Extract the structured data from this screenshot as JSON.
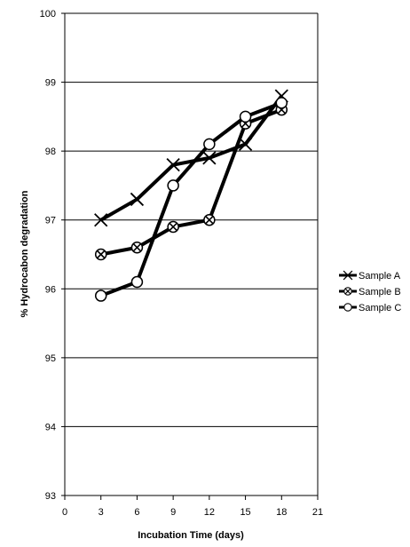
{
  "chart_data": {
    "type": "line",
    "xlabel": "Incubation Time (days)",
    "ylabel": "% Hydrocabon degradation",
    "xlim": [
      0,
      21
    ],
    "ylim": [
      93,
      100
    ],
    "x_ticks": [
      0,
      3,
      6,
      9,
      12,
      15,
      18,
      21
    ],
    "y_ticks": [
      93,
      94,
      95,
      96,
      97,
      98,
      99,
      100
    ],
    "grid": "horizontal",
    "legend_position": "right",
    "line_color": "#000000",
    "x": [
      3,
      6,
      9,
      12,
      15,
      18
    ],
    "series": [
      {
        "name": "Sample A",
        "marker": "x-cross",
        "values": [
          97.0,
          97.3,
          97.8,
          97.9,
          98.1,
          98.8
        ]
      },
      {
        "name": "Sample B",
        "marker": "circled-x",
        "values": [
          96.5,
          96.6,
          96.9,
          97.0,
          98.4,
          98.6
        ]
      },
      {
        "name": "Sample C",
        "marker": "open-circle",
        "values": [
          95.9,
          96.1,
          97.5,
          98.1,
          98.5,
          98.7
        ]
      }
    ]
  }
}
